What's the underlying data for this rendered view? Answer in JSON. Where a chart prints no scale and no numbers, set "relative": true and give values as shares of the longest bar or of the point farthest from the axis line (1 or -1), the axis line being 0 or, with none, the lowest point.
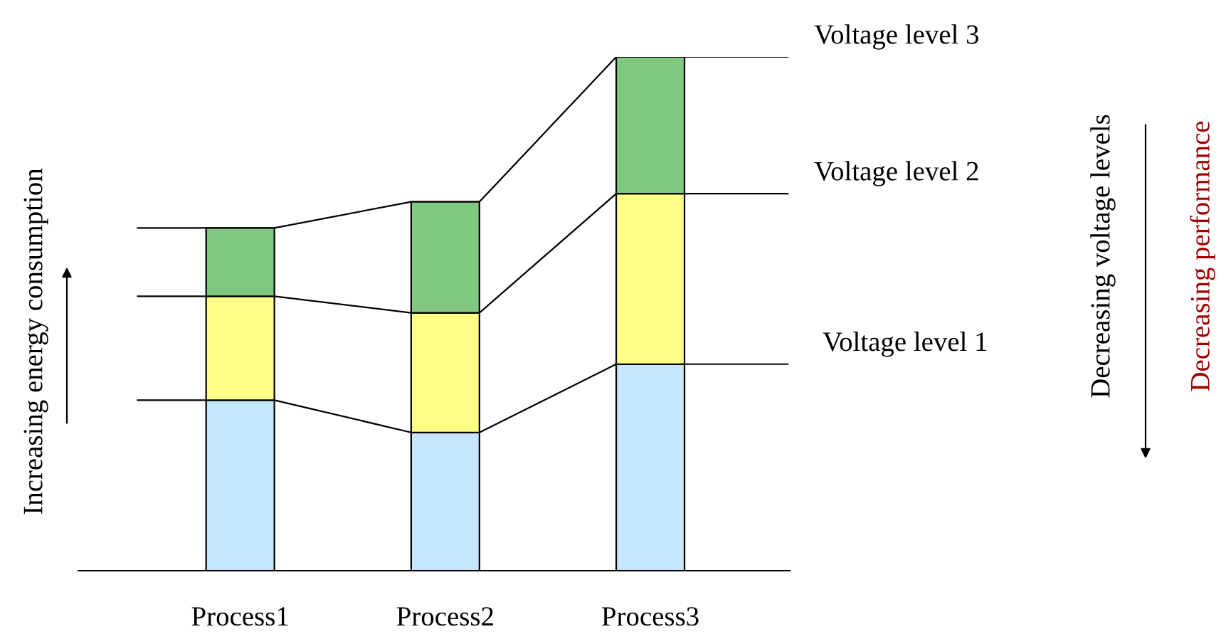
{
  "chart_data": {
    "type": "bar",
    "stacked": true,
    "relative": true,
    "tick_labels": "x",
    "legend": false,
    "grid": false,
    "ylabel": "Increasing energy consumption",
    "categories": [
      "Process1",
      "Process2",
      "Process3"
    ],
    "series": [
      {
        "color": "#c6e6fb",
        "values": [
          0.332,
          0.269,
          0.402
        ]
      },
      {
        "color": "#ffff88",
        "values": [
          0.202,
          0.233,
          0.332
        ]
      },
      {
        "color": "#80c880",
        "values": [
          0.133,
          0.216,
          0.266
        ]
      }
    ],
    "annotations": [
      "Voltage level 1",
      "Voltage level 2",
      "Voltage level 3",
      "Decreasing voltage levels",
      "Decreasing performance"
    ]
  }
}
